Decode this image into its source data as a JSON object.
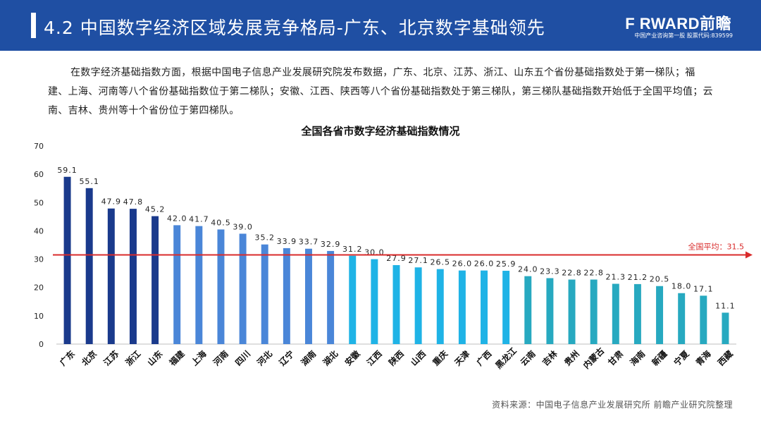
{
  "header": {
    "title": "4.2 中国数字经济区域发展竞争格局-广东、北京数字基础领先",
    "brand_name": "F RWARD前瞻",
    "brand_sub": "中国产业咨询第一股 股票代码:839599"
  },
  "intro": "在数字经济基础指数方面，根据中国电子信息产业发展研究院发布数据，广东、北京、江苏、浙江、山东五个省份基础指数处于第一梯队；福建、上海、河南等八个省份基础指数位于第二梯队；安徽、江西、陕西等八个省份基础指数处于第三梯队，第三梯队基础指数开始低于全国平均值；云南、吉林、贵州等十个省份位于第四梯队。",
  "chart_data": {
    "type": "bar",
    "title": "全国各省市数字经济基础指数情况",
    "categories": [
      "广东",
      "北京",
      "江苏",
      "浙江",
      "山东",
      "福建",
      "上海",
      "河南",
      "四川",
      "河北",
      "辽宁",
      "湖南",
      "湖北",
      "安徽",
      "江西",
      "陕西",
      "山西",
      "重庆",
      "天津",
      "广西",
      "黑龙江",
      "云南",
      "吉林",
      "贵州",
      "内蒙古",
      "甘肃",
      "海南",
      "新疆",
      "宁夏",
      "青海",
      "西藏"
    ],
    "values": [
      59.1,
      55.1,
      47.9,
      47.8,
      45.2,
      42.0,
      41.7,
      40.5,
      39.0,
      35.2,
      33.9,
      33.7,
      32.9,
      31.2,
      30.0,
      27.9,
      27.1,
      26.5,
      26.0,
      26.0,
      25.9,
      24.0,
      23.3,
      22.8,
      22.8,
      21.3,
      21.2,
      20.5,
      18.0,
      17.1,
      11.1
    ],
    "value_labels": [
      "59.1",
      "55.1",
      "47.9",
      "47.8",
      "45.2",
      "42.0",
      "41.7",
      "40.5",
      "39.0",
      "35.2",
      "33.9",
      "33.7",
      "32.9",
      "31.2",
      "30.0",
      "27.9",
      "27.1",
      "26.5",
      "26.0",
      "26.0",
      "25.9",
      "24.0",
      "23.3",
      "22.8",
      "22.8",
      "21.3",
      "21.2",
      "20.5",
      "18.0",
      "17.1",
      "11.1"
    ],
    "tiers": [
      1,
      1,
      1,
      1,
      1,
      2,
      2,
      2,
      2,
      2,
      2,
      2,
      2,
      3,
      3,
      3,
      3,
      3,
      3,
      3,
      3,
      4,
      4,
      4,
      4,
      4,
      4,
      4,
      4,
      4,
      4
    ],
    "tier_colors": {
      "1": "#1a3a8c",
      "2": "#4a86d8",
      "3": "#1fb3e6",
      "4": "#27a9c0"
    },
    "ylim": [
      0,
      70
    ],
    "yticks": [
      "0",
      "10",
      "20",
      "30",
      "40",
      "50",
      "60",
      "70"
    ],
    "ytick_values": [
      0,
      10,
      20,
      30,
      40,
      50,
      60,
      70
    ],
    "average": {
      "value": 31.5,
      "label": "全国平均：31.5",
      "color": "#d92b2b"
    },
    "grid": false
  },
  "source": "资料来源：中国电子信息产业发展研究所 前瞻产业研究院整理"
}
